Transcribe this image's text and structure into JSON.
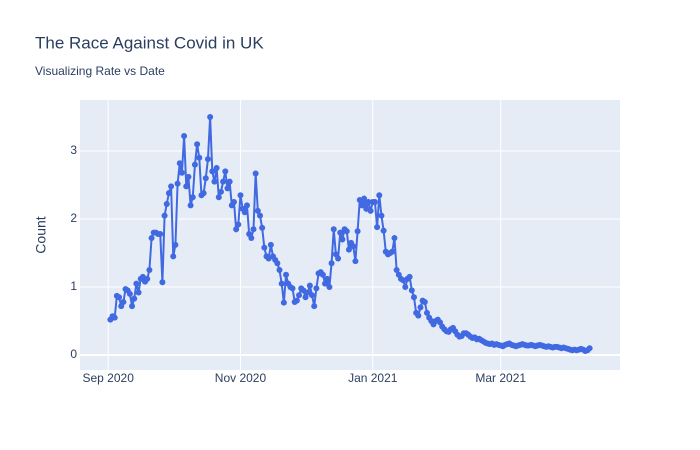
{
  "chart_data": {
    "type": "line",
    "title": "The Race Against Covid in UK",
    "subtitle": "Visualizing Rate vs Date",
    "y_label": "Count",
    "color": "#4169e1",
    "grid": true,
    "xlim": [
      "2020-08-19",
      "2021-04-25"
    ],
    "xticks": [
      {
        "value": "2020-09-01",
        "label": "Sep 2020"
      },
      {
        "value": "2020-11-01",
        "label": "Nov 2020"
      },
      {
        "value": "2021-01-01",
        "label": "Jan 2021"
      },
      {
        "value": "2021-03-01",
        "label": "Mar 2021"
      }
    ],
    "ylim": [
      -0.22,
      3.75
    ],
    "yticks": [
      0,
      1,
      2,
      3
    ],
    "x": [
      "2020-09-02",
      "2020-09-03",
      "2020-09-04",
      "2020-09-05",
      "2020-09-06",
      "2020-09-07",
      "2020-09-08",
      "2020-09-09",
      "2020-09-10",
      "2020-09-11",
      "2020-09-12",
      "2020-09-13",
      "2020-09-14",
      "2020-09-15",
      "2020-09-16",
      "2020-09-17",
      "2020-09-18",
      "2020-09-19",
      "2020-09-20",
      "2020-09-21",
      "2020-09-22",
      "2020-09-23",
      "2020-09-24",
      "2020-09-25",
      "2020-09-26",
      "2020-09-27",
      "2020-09-28",
      "2020-09-29",
      "2020-09-30",
      "2020-10-01",
      "2020-10-02",
      "2020-10-03",
      "2020-10-04",
      "2020-10-05",
      "2020-10-06",
      "2020-10-07",
      "2020-10-08",
      "2020-10-09",
      "2020-10-10",
      "2020-10-11",
      "2020-10-12",
      "2020-10-13",
      "2020-10-14",
      "2020-10-15",
      "2020-10-16",
      "2020-10-17",
      "2020-10-18",
      "2020-10-19",
      "2020-10-20",
      "2020-10-21",
      "2020-10-22",
      "2020-10-23",
      "2020-10-24",
      "2020-10-25",
      "2020-10-26",
      "2020-10-27",
      "2020-10-28",
      "2020-10-29",
      "2020-10-30",
      "2020-10-31",
      "2020-11-01",
      "2020-11-02",
      "2020-11-03",
      "2020-11-04",
      "2020-11-05",
      "2020-11-06",
      "2020-11-07",
      "2020-11-08",
      "2020-11-09",
      "2020-11-10",
      "2020-11-11",
      "2020-11-12",
      "2020-11-13",
      "2020-11-14",
      "2020-11-15",
      "2020-11-16",
      "2020-11-17",
      "2020-11-18",
      "2020-11-19",
      "2020-11-20",
      "2020-11-21",
      "2020-11-22",
      "2020-11-23",
      "2020-11-24",
      "2020-11-25",
      "2020-11-26",
      "2020-11-27",
      "2020-11-28",
      "2020-11-29",
      "2020-11-30",
      "2020-12-01",
      "2020-12-02",
      "2020-12-03",
      "2020-12-04",
      "2020-12-05",
      "2020-12-06",
      "2020-12-07",
      "2020-12-08",
      "2020-12-09",
      "2020-12-10",
      "2020-12-11",
      "2020-12-12",
      "2020-12-13",
      "2020-12-14",
      "2020-12-15",
      "2020-12-16",
      "2020-12-17",
      "2020-12-18",
      "2020-12-19",
      "2020-12-20",
      "2020-12-21",
      "2020-12-22",
      "2020-12-23",
      "2020-12-24",
      "2020-12-25",
      "2020-12-26",
      "2020-12-27",
      "2020-12-28",
      "2020-12-29",
      "2020-12-30",
      "2020-12-31",
      "2021-01-01",
      "2021-01-02",
      "2021-01-03",
      "2021-01-04",
      "2021-01-05",
      "2021-01-06",
      "2021-01-07",
      "2021-01-08",
      "2021-01-09",
      "2021-01-10",
      "2021-01-11",
      "2021-01-12",
      "2021-01-13",
      "2021-01-14",
      "2021-01-15",
      "2021-01-16",
      "2021-01-17",
      "2021-01-18",
      "2021-01-19",
      "2021-01-20",
      "2021-01-21",
      "2021-01-22",
      "2021-01-23",
      "2021-01-24",
      "2021-01-25",
      "2021-01-26",
      "2021-01-27",
      "2021-01-28",
      "2021-01-29",
      "2021-01-30",
      "2021-01-31",
      "2021-02-01",
      "2021-02-02",
      "2021-02-03",
      "2021-02-04",
      "2021-02-05",
      "2021-02-06",
      "2021-02-07",
      "2021-02-08",
      "2021-02-09",
      "2021-02-10",
      "2021-02-11",
      "2021-02-12",
      "2021-02-13",
      "2021-02-14",
      "2021-02-15",
      "2021-02-16",
      "2021-02-17",
      "2021-02-18",
      "2021-02-19",
      "2021-02-20",
      "2021-02-21",
      "2021-02-22",
      "2021-02-23",
      "2021-02-24",
      "2021-02-25",
      "2021-02-26",
      "2021-02-27",
      "2021-02-28",
      "2021-03-01",
      "2021-03-02",
      "2021-03-03",
      "2021-03-04",
      "2021-03-05",
      "2021-03-06",
      "2021-03-07",
      "2021-03-08",
      "2021-03-09",
      "2021-03-10",
      "2021-03-11",
      "2021-03-12",
      "2021-03-13",
      "2021-03-14",
      "2021-03-15",
      "2021-03-16",
      "2021-03-17",
      "2021-03-18",
      "2021-03-19",
      "2021-03-20",
      "2021-03-21",
      "2021-03-22",
      "2021-03-23",
      "2021-03-24",
      "2021-03-25",
      "2021-03-26",
      "2021-03-27",
      "2021-03-28",
      "2021-03-29",
      "2021-03-30",
      "2021-03-31",
      "2021-04-01",
      "2021-04-02",
      "2021-04-03",
      "2021-04-04",
      "2021-04-05",
      "2021-04-06",
      "2021-04-07",
      "2021-04-08",
      "2021-04-09",
      "2021-04-10",
      "2021-04-11"
    ],
    "values": [
      0.52,
      0.57,
      0.55,
      0.87,
      0.85,
      0.72,
      0.78,
      0.97,
      0.95,
      0.9,
      0.72,
      0.83,
      1.05,
      0.92,
      1.12,
      1.15,
      1.08,
      1.12,
      1.25,
      1.72,
      1.8,
      1.8,
      1.78,
      1.78,
      1.07,
      2.05,
      2.22,
      2.38,
      2.48,
      1.45,
      1.62,
      2.52,
      2.82,
      2.68,
      3.22,
      2.48,
      2.62,
      2.2,
      2.32,
      2.8,
      3.1,
      2.9,
      2.35,
      2.38,
      2.6,
      2.88,
      3.5,
      2.7,
      2.55,
      2.75,
      2.32,
      2.4,
      2.55,
      2.7,
      2.45,
      2.55,
      2.2,
      2.25,
      1.85,
      1.92,
      2.35,
      2.15,
      2.1,
      2.2,
      1.78,
      1.72,
      1.85,
      2.67,
      2.12,
      2.05,
      1.87,
      1.58,
      1.45,
      1.42,
      1.62,
      1.45,
      1.4,
      1.35,
      1.25,
      1.05,
      0.77,
      1.18,
      1.05,
      1.0,
      0.98,
      0.78,
      0.8,
      0.88,
      0.98,
      0.95,
      0.85,
      0.92,
      1.02,
      0.88,
      0.72,
      0.98,
      1.2,
      1.22,
      1.18,
      1.05,
      1.12,
      1.0,
      1.35,
      1.85,
      1.48,
      1.42,
      1.8,
      1.7,
      1.85,
      1.82,
      1.55,
      1.65,
      1.6,
      1.38,
      1.82,
      2.28,
      2.2,
      2.3,
      2.15,
      2.25,
      2.12,
      2.25,
      2.25,
      1.88,
      2.35,
      2.05,
      1.83,
      1.52,
      1.48,
      1.5,
      1.52,
      1.72,
      1.25,
      1.18,
      1.12,
      1.1,
      1.0,
      1.12,
      1.15,
      0.95,
      0.85,
      0.62,
      0.58,
      0.7,
      0.8,
      0.78,
      0.62,
      0.55,
      0.5,
      0.45,
      0.5,
      0.52,
      0.48,
      0.42,
      0.38,
      0.35,
      0.34,
      0.38,
      0.4,
      0.35,
      0.3,
      0.27,
      0.28,
      0.32,
      0.32,
      0.3,
      0.27,
      0.25,
      0.26,
      0.23,
      0.24,
      0.22,
      0.2,
      0.18,
      0.17,
      0.16,
      0.17,
      0.15,
      0.16,
      0.15,
      0.14,
      0.13,
      0.15,
      0.16,
      0.17,
      0.15,
      0.14,
      0.13,
      0.14,
      0.15,
      0.16,
      0.15,
      0.14,
      0.14,
      0.15,
      0.14,
      0.13,
      0.14,
      0.15,
      0.14,
      0.13,
      0.12,
      0.13,
      0.12,
      0.11,
      0.12,
      0.12,
      0.11,
      0.1,
      0.11,
      0.1,
      0.09,
      0.08,
      0.07,
      0.08,
      0.07,
      0.08,
      0.09,
      0.08,
      0.06,
      0.07,
      0.1
    ]
  }
}
